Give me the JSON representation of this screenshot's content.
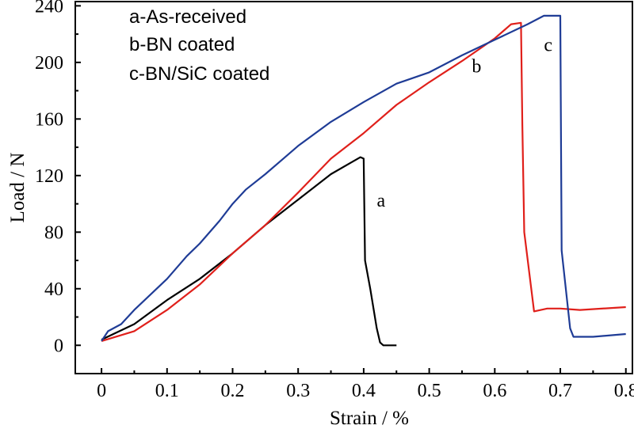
{
  "chart_data": {
    "type": "line",
    "title": "",
    "xlabel": "Strain / %",
    "ylabel": "Load / N",
    "xlim": [
      -0.04,
      0.81
    ],
    "ylim": [
      -20,
      243
    ],
    "xticks": [
      "0",
      "0.1",
      "0.2",
      "0.3",
      "0.4",
      "0.5",
      "0.6",
      "0.7",
      "0.8"
    ],
    "xtick_values": [
      0,
      0.1,
      0.2,
      0.3,
      0.4,
      0.5,
      0.6,
      0.7,
      0.8
    ],
    "yticks": [
      "0",
      "40",
      "80",
      "120",
      "160",
      "200",
      "240"
    ],
    "ytick_values": [
      0,
      40,
      80,
      120,
      160,
      200,
      240
    ],
    "grid": false,
    "legend_position": "top-left",
    "legend": [
      "a-As-received",
      "b-BN coated",
      "c-BN/SiC coated"
    ],
    "series": [
      {
        "name": "a",
        "color": "#000000",
        "label_x": 0.42,
        "label_y": 98,
        "points": [
          [
            0,
            4
          ],
          [
            0.05,
            15
          ],
          [
            0.1,
            32
          ],
          [
            0.15,
            47
          ],
          [
            0.2,
            65
          ],
          [
            0.25,
            85
          ],
          [
            0.3,
            103
          ],
          [
            0.35,
            121
          ],
          [
            0.38,
            129
          ],
          [
            0.395,
            133
          ],
          [
            0.4,
            132
          ],
          [
            0.402,
            60
          ],
          [
            0.41,
            40
          ],
          [
            0.42,
            12
          ],
          [
            0.425,
            2
          ],
          [
            0.43,
            0
          ],
          [
            0.45,
            0
          ]
        ]
      },
      {
        "name": "b",
        "color": "#e0201b",
        "label_x": 0.565,
        "label_y": 193,
        "points": [
          [
            0,
            3
          ],
          [
            0.05,
            10
          ],
          [
            0.1,
            25
          ],
          [
            0.15,
            43
          ],
          [
            0.2,
            65
          ],
          [
            0.25,
            85
          ],
          [
            0.3,
            108
          ],
          [
            0.35,
            132
          ],
          [
            0.4,
            150
          ],
          [
            0.45,
            170
          ],
          [
            0.5,
            186
          ],
          [
            0.55,
            201
          ],
          [
            0.6,
            217
          ],
          [
            0.625,
            227
          ],
          [
            0.64,
            228
          ],
          [
            0.642,
            156
          ],
          [
            0.645,
            80
          ],
          [
            0.66,
            24
          ],
          [
            0.68,
            26
          ],
          [
            0.7,
            26
          ],
          [
            0.73,
            25
          ],
          [
            0.8,
            27
          ]
        ]
      },
      {
        "name": "c",
        "color": "#1f3c96",
        "label_x": 0.675,
        "label_y": 208,
        "points": [
          [
            0,
            3
          ],
          [
            0.01,
            10
          ],
          [
            0.03,
            15
          ],
          [
            0.05,
            25
          ],
          [
            0.1,
            47
          ],
          [
            0.13,
            63
          ],
          [
            0.15,
            72
          ],
          [
            0.18,
            88
          ],
          [
            0.2,
            100
          ],
          [
            0.22,
            110
          ],
          [
            0.25,
            121
          ],
          [
            0.28,
            133
          ],
          [
            0.3,
            141
          ],
          [
            0.35,
            158
          ],
          [
            0.4,
            172
          ],
          [
            0.45,
            185
          ],
          [
            0.5,
            193
          ],
          [
            0.55,
            205
          ],
          [
            0.6,
            216
          ],
          [
            0.65,
            227
          ],
          [
            0.675,
            233
          ],
          [
            0.7,
            233
          ],
          [
            0.702,
            67
          ],
          [
            0.715,
            12
          ],
          [
            0.72,
            6
          ],
          [
            0.75,
            6
          ],
          [
            0.8,
            8
          ]
        ]
      }
    ]
  }
}
